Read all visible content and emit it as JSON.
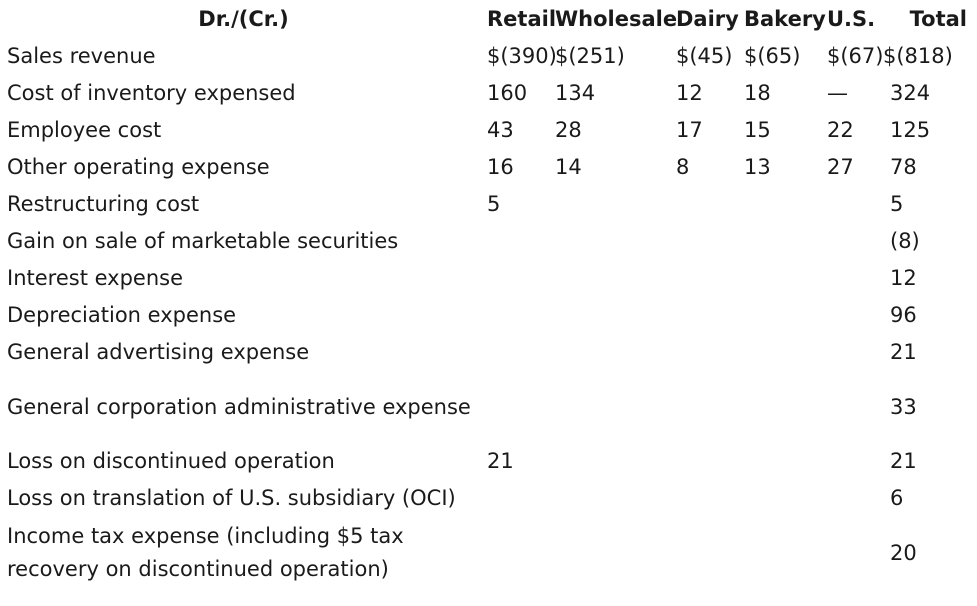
{
  "table": {
    "headers": [
      "Dr./(Cr.)",
      "Retail",
      "Wholesale",
      "Dairy",
      "Bakery",
      "U.S.",
      "Total"
    ],
    "rows": [
      {
        "label": "Sales revenue",
        "values": [
          "$(390)",
          "$(251)",
          "$(45)",
          "$(65)",
          "$(67)",
          "$(818)"
        ]
      },
      {
        "label": "Cost of inventory expensed",
        "values": [
          "160",
          "134",
          "12",
          "18",
          "—",
          "324"
        ]
      },
      {
        "label": "Employee cost",
        "values": [
          "43",
          "28",
          "17",
          "15",
          "22",
          "125"
        ]
      },
      {
        "label": "Other operating expense",
        "values": [
          "16",
          "14",
          "8",
          "13",
          "27",
          "78"
        ]
      },
      {
        "label": "Restructuring cost",
        "values": [
          "5",
          "",
          "",
          "",
          "",
          "5"
        ]
      },
      {
        "label": "Gain on sale of marketable securities",
        "values": [
          "",
          "",
          "",
          "",
          "",
          "(8)"
        ]
      },
      {
        "label": "Interest expense",
        "values": [
          "",
          "",
          "",
          "",
          "",
          "12"
        ]
      },
      {
        "label": "Depreciation expense",
        "values": [
          "",
          "",
          "",
          "",
          "",
          "96"
        ]
      },
      {
        "label": "General advertising expense",
        "values": [
          "",
          "",
          "",
          "",
          "",
          "21"
        ]
      },
      {
        "label": "General corporation administrative expense",
        "values": [
          "",
          "",
          "",
          "",
          "",
          "33"
        ]
      },
      {
        "label": "Loss on discontinued operation",
        "values": [
          "21",
          "",
          "",
          "",
          "",
          "21"
        ]
      },
      {
        "label": "Loss on translation of U.S. subsidiary (OCI)",
        "values": [
          "",
          "",
          "",
          "",
          "",
          "6"
        ]
      },
      {
        "label": "Income tax expense (including $5 tax recovery on discontinued operation)",
        "values": [
          "",
          "",
          "",
          "",
          "",
          "20"
        ]
      }
    ]
  }
}
